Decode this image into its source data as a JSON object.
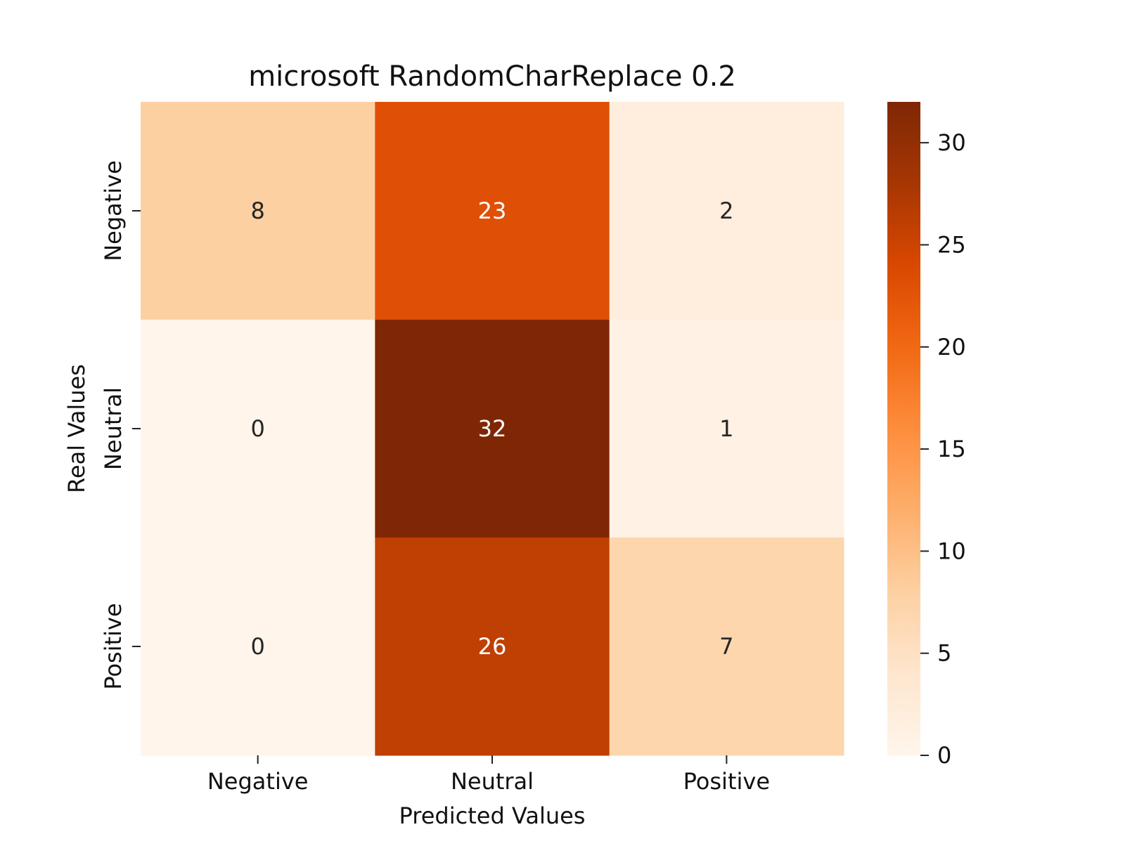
{
  "chart_data": {
    "type": "heatmap",
    "title": "microsoft RandomCharReplace 0.2",
    "xlabel": "Predicted Values",
    "ylabel": "Real Values",
    "x_categories": [
      "Negative",
      "Neutral",
      "Positive"
    ],
    "y_categories": [
      "Negative",
      "Neutral",
      "Positive"
    ],
    "values": [
      [
        8,
        23,
        2
      ],
      [
        0,
        32,
        1
      ],
      [
        0,
        26,
        7
      ]
    ],
    "colormap": "Oranges",
    "colormap_stops": [
      "#fff5eb",
      "#fee6ce",
      "#fdd0a2",
      "#fdae6b",
      "#fd8d3c",
      "#f16913",
      "#d94801",
      "#a63603",
      "#7f2704"
    ],
    "colorbar": {
      "range": [
        0,
        32
      ],
      "ticks": [
        0,
        5,
        10,
        15,
        20,
        25,
        30
      ]
    },
    "annotation_colors": {
      "dark_text": "#262626",
      "light_text": "#ffffff"
    },
    "legend": "none",
    "grid": false
  }
}
